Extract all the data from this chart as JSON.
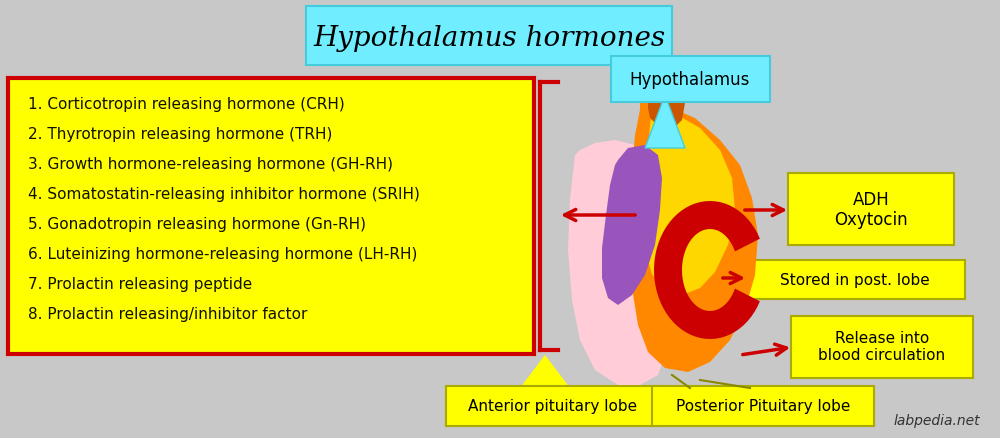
{
  "title": "Hypothalamus hormones",
  "title_fontsize": 20,
  "bg_color": "#C8C8C8",
  "list_items": [
    "1. Corticotropin releasing hormone (CRH)",
    "2. Thyrotropin releasing hormone (TRH)",
    "3. Growth hormone-releasing hormone (GH-RH)",
    "4. Somatostatin-releasing inhibitor hormone (SRIH)",
    "5. Gonadotropin releasing hormone (Gn-RH)",
    "6. Luteinizing hormone-releasing hormone (LH-RH)",
    "7. Prolactin releasing peptide",
    "8. Prolactin releasing/inhibitor factor"
  ],
  "list_box_color": "#FFFF00",
  "list_box_edge": "#CC0000",
  "list_text_color": "#111100",
  "list_fontsize": 11,
  "label_hypothalamus": "Hypothalamus",
  "label_adh": "ADH\nOxytocin",
  "label_stored": "Stored in post. lobe",
  "label_release": "Release into\nblood circulation",
  "label_anterior": "Anterior pituitary lobe",
  "label_posterior": "Posterior Pituitary lobe",
  "label_watermark": "labpedia.net",
  "label_box_color": "#FFFF00",
  "label_box_edge": "#AAAA00",
  "cyan_box_color": "#70EEFF",
  "cyan_box_edge": "#44CCDD",
  "arrow_color": "#CC0000",
  "gland_orange": "#FF8800",
  "gland_dark_orange": "#CC5500",
  "gland_yellow": "#FFD700",
  "gland_pink": "#FFB0C0",
  "gland_pink2": "#FFCCD8",
  "gland_purple": "#9955BB",
  "gland_red": "#CC0000",
  "ant_label_yellow": "#FFFF00"
}
